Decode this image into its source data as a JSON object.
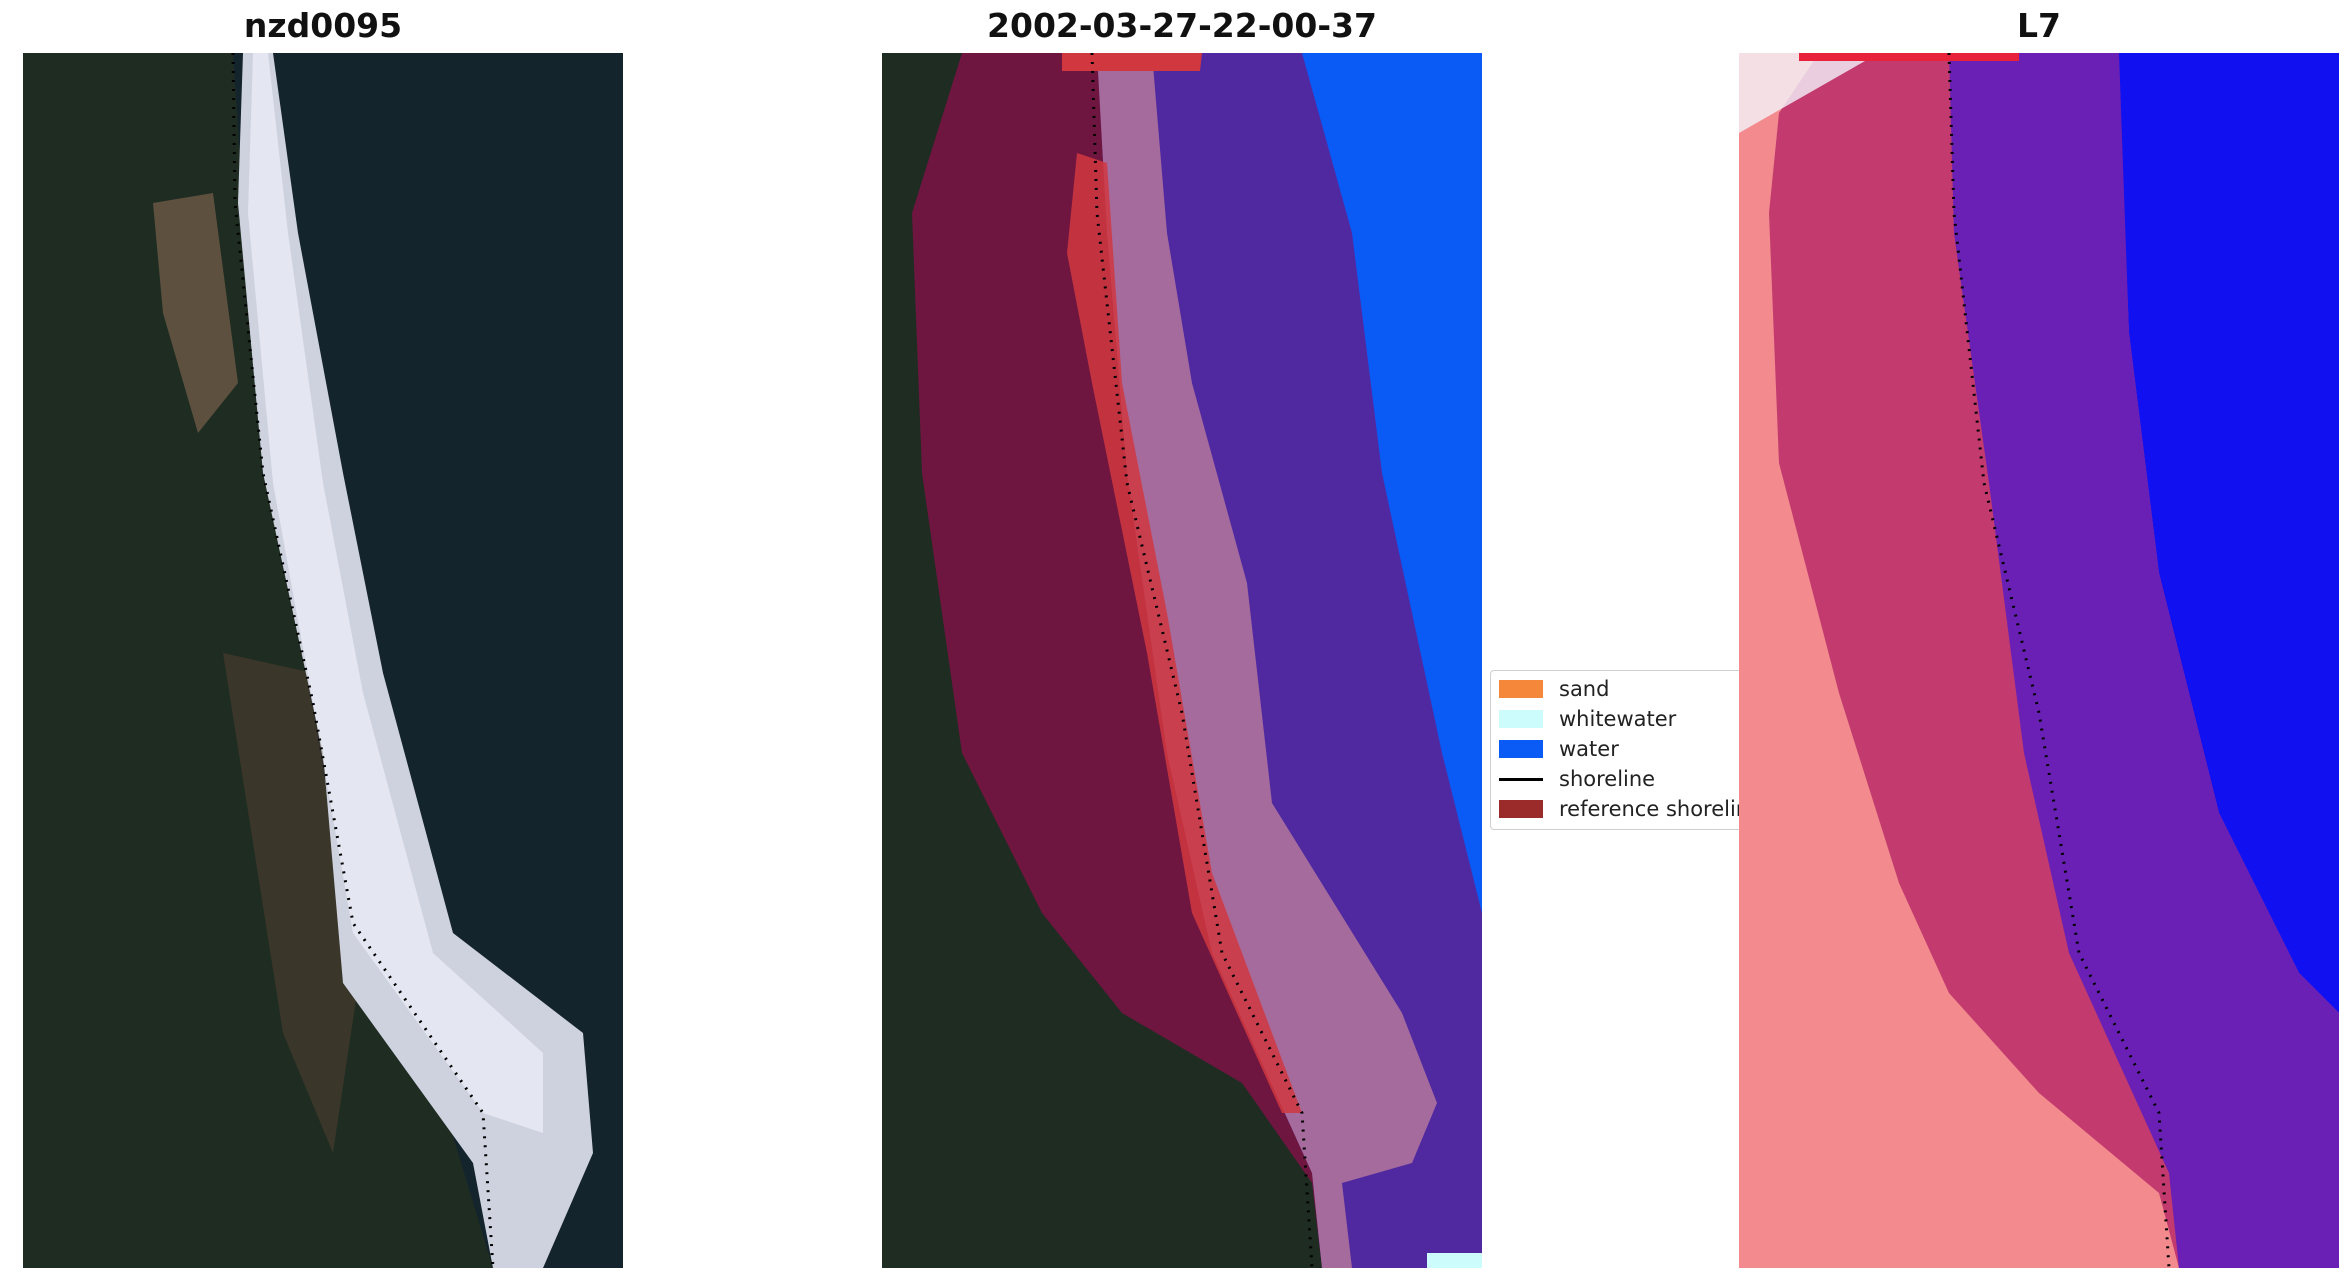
{
  "titles": {
    "site": "nzd0095",
    "date": "2002-03-27-22-00-37",
    "satellite": "L7"
  },
  "legend": [
    {
      "label": "sand",
      "color": "#f5873a",
      "kind": "patch"
    },
    {
      "label": "whitewater",
      "color": "#ccfcfc",
      "kind": "patch"
    },
    {
      "label": "water",
      "color": "#0a5af5",
      "kind": "patch"
    },
    {
      "label": "shoreline",
      "color": "#000000",
      "kind": "line"
    },
    {
      "label": "reference shoreline",
      "color": "#9b2a2a",
      "kind": "patch"
    }
  ],
  "colors": {
    "land_dark": "#1b2a23",
    "ocean_dark": "#132430",
    "surf_white": "#d9dbe8",
    "classified_water": "#0a5af5",
    "buffer_land": "#6e1640",
    "buffer_surf": "#a46b9c",
    "buffer_water": "#5028a0",
    "mndwi_land": "#f28a8e",
    "mndwi_buffer_land": "#c23a6e",
    "mndwi_buffer_water": "#6a20b4",
    "mndwi_water": "#1010f0"
  }
}
